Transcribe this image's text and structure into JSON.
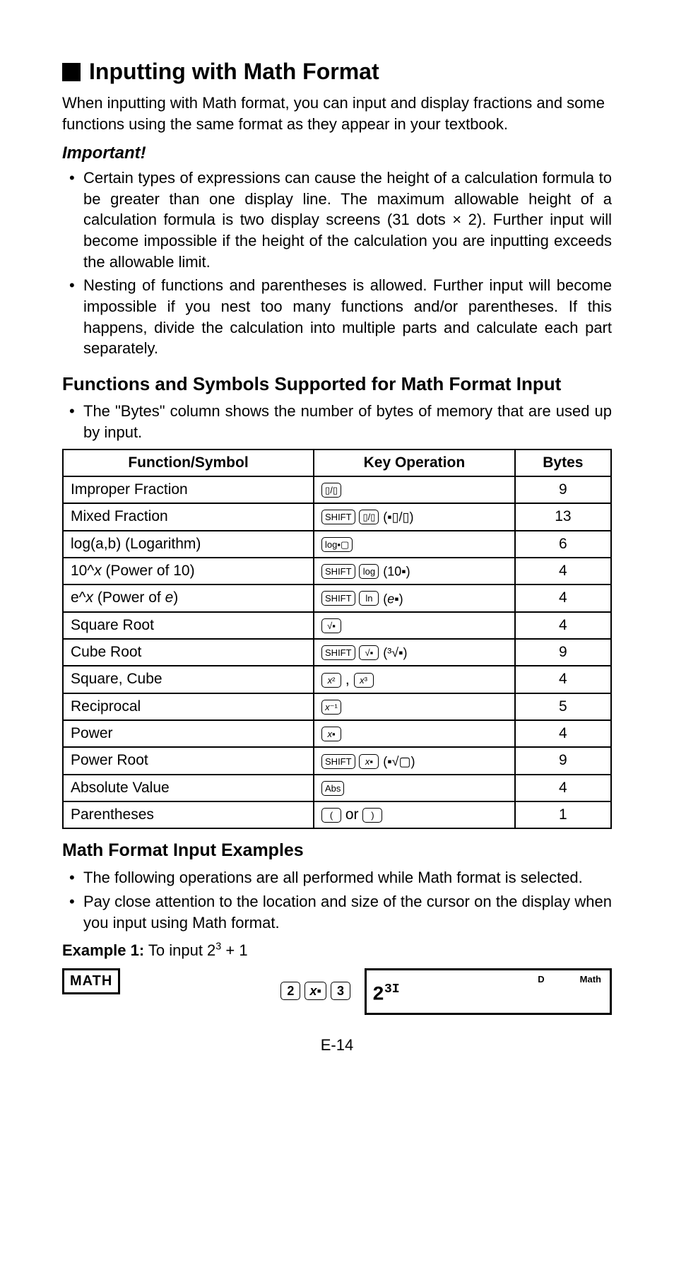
{
  "title": "Inputting with Math Format",
  "intro": "When inputting with Math format, you can input and display fractions and some functions using the same format as they appear in your textbook.",
  "important_label": "Important!",
  "important_bullets": [
    "Certain types of expressions can cause the height of a calculation formula to be greater than one display line. The maximum allowable height of a calculation formula is two display screens (31 dots × 2). Further input will become impossible if the height of the calculation you are inputting exceeds the allowable limit.",
    "Nesting of functions and parentheses is allowed. Further input will become impossible if you nest too many functions and/or parentheses. If this happens, divide the calculation into multiple parts and calculate each part separately."
  ],
  "table_heading": "Functions and Symbols Supported for Math Format Input",
  "table_note": "The \"Bytes\" column shows the number of bytes of memory that are used up by input.",
  "columns": [
    "Function/Symbol",
    "Key Operation",
    "Bytes"
  ],
  "rows": [
    {
      "fs": "Improper Fraction",
      "ko": "frac",
      "bytes": 9
    },
    {
      "fs": "Mixed Fraction",
      "ko": "shift_frac_mixed",
      "bytes": 13
    },
    {
      "fs": "log(a,b) (Logarithm)",
      "ko": "log_ab",
      "bytes": 6
    },
    {
      "fs_html": "10^<span class=\"italic\">x</span> (Power of 10)",
      "ko": "shift_log_10x",
      "bytes": 4
    },
    {
      "fs_html": "e^<span class=\"italic\">x</span> (Power of <span class=\"italic\">e</span>)",
      "ko": "shift_ln_ex",
      "bytes": 4
    },
    {
      "fs": "Square Root",
      "ko": "sqrt",
      "bytes": 4
    },
    {
      "fs": "Cube Root",
      "ko": "shift_sqrt_cuberoot",
      "bytes": 9
    },
    {
      "fs": "Square, Cube",
      "ko": "x2_x3",
      "bytes": 4
    },
    {
      "fs": "Reciprocal",
      "ko": "x_inv",
      "bytes": 5
    },
    {
      "fs": "Power",
      "ko": "x_pow",
      "bytes": 4
    },
    {
      "fs": "Power Root",
      "ko": "shift_xpow_nroot",
      "bytes": 9
    },
    {
      "fs": "Absolute Value",
      "ko": "abs",
      "bytes": 4
    },
    {
      "fs": "Parentheses",
      "ko": "parens",
      "bytes": 1
    }
  ],
  "examples_title": "Math Format Input Examples",
  "examples_bullets": [
    "The following operations are all performed while Math format is selected.",
    "Pay close attention to the location and size of the cursor on the display when you input using Math format."
  ],
  "example1_label": "Example 1:",
  "example1_text": "To input 2",
  "example1_sup": "3",
  "example1_tail": " + 1",
  "math_tag": "MATH",
  "lcd": {
    "indicator_D": "D",
    "indicator_Math": "Math",
    "display": "2",
    "display_sup": "3",
    "cursor": "I"
  },
  "page": "E-14",
  "key_labels": {
    "shift": "SHIFT",
    "frac": "▯/▯",
    "mixed_text": "(▪▯/▯)",
    "log_ab": "log▪▢",
    "log": "log",
    "ten_x": "(10▪)",
    "ln": "ln",
    "e_x_html": "(<span class=\"italic\">e</span>▪)",
    "sqrt": "√▪",
    "cuberoot_text": "(³√▪)",
    "x2_html": "<span class=\"italic\">x</span>²",
    "x3_html": "<span class=\"italic\">x</span>³",
    "x_inv_html": "<span class=\"italic\">x</span>⁻¹",
    "x_pow_html": "<span class=\"italic\">x</span>▪",
    "nroot_text": "(▪√▢)",
    "abs": "Abs",
    "lparen": "(",
    "rparen": ")",
    "or": " or ",
    "two": "2",
    "three": "3"
  }
}
